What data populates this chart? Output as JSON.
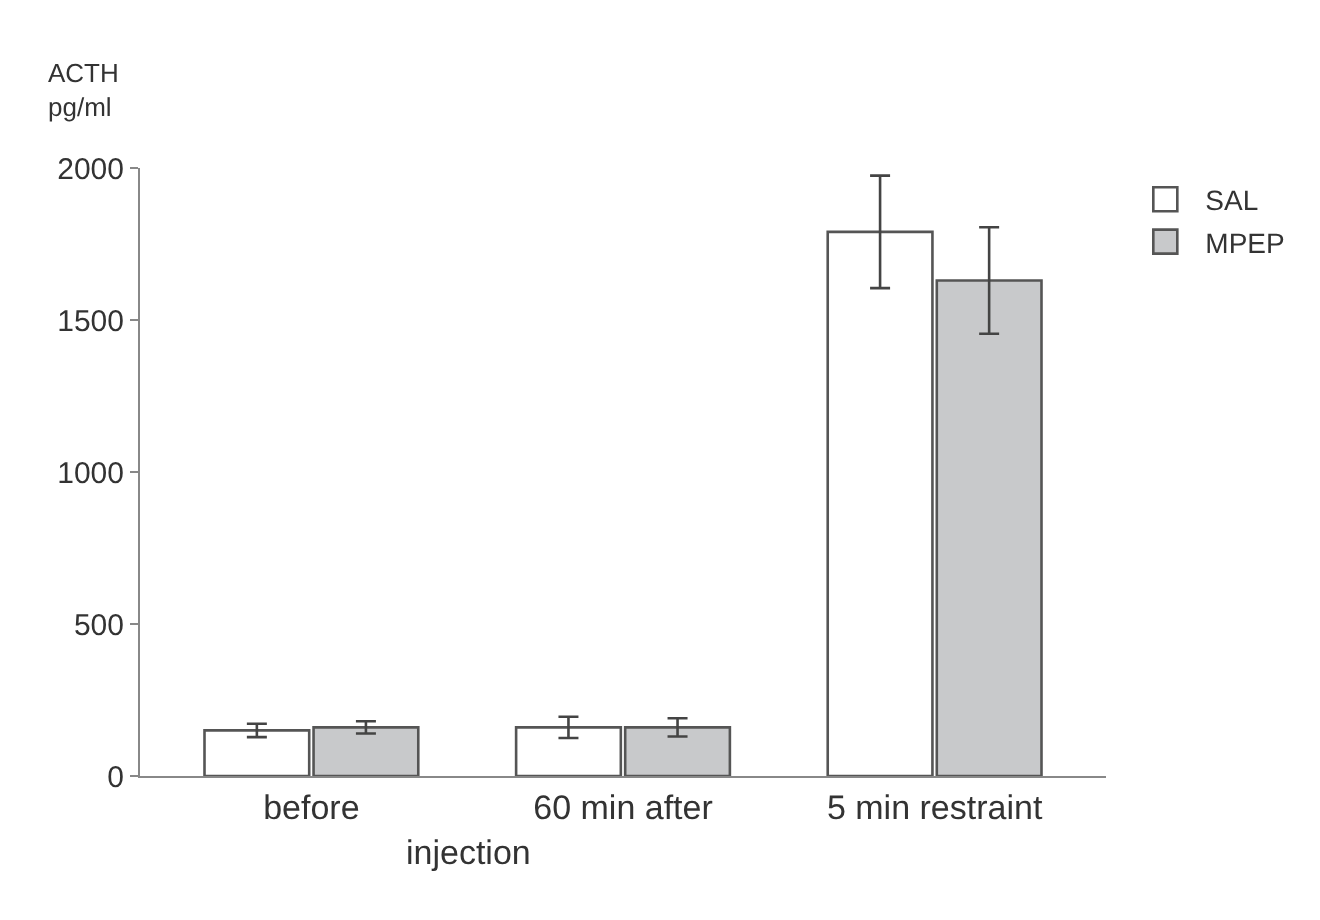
{
  "chart_data": {
    "type": "bar",
    "ylabel": "ACTH\npg/ml",
    "categories": [
      "before",
      "60 min after",
      "5 min restraint"
    ],
    "series": [
      {
        "name": "SAL",
        "color": "#ffffff",
        "values": [
          150,
          160,
          1790
        ],
        "errors": [
          22,
          35,
          185
        ]
      },
      {
        "name": "MPEP",
        "color": "#c8c9cb",
        "values": [
          160,
          160,
          1630
        ],
        "errors": [
          20,
          30,
          175
        ]
      }
    ],
    "annotations": [
      "injection"
    ],
    "ylim": [
      0,
      2000
    ],
    "yticks": [
      0,
      500,
      1000,
      1500,
      2000
    ],
    "legend": "top right"
  }
}
